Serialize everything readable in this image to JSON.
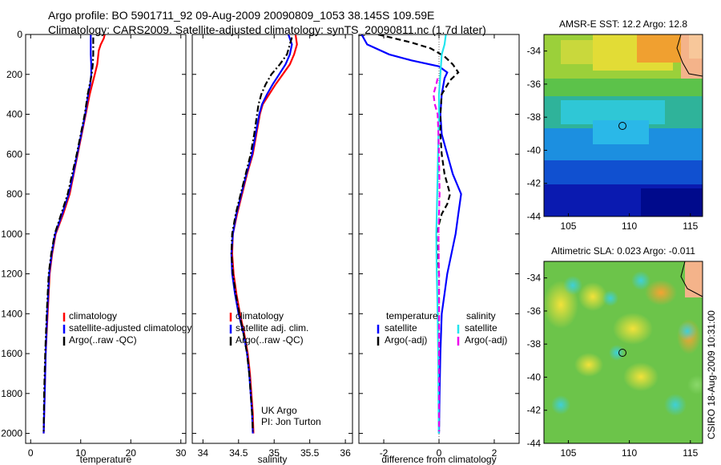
{
  "title": {
    "line1": "Argo profile: BO 5901711_92 09-Aug-2009 20090809_1053 38.145S 109.59E",
    "line2": "Climatology: CARS2009. Satellite-adjusted climatology: synTS_20090811.nc (1.7d later)"
  },
  "footer_stamp": "CSIRO 18-Aug-2009 10:31:00",
  "colors": {
    "red": "#ff0000",
    "blue": "#0000ff",
    "black": "#000000",
    "cyan": "#22e5ee",
    "magenta": "#ee00ee"
  },
  "chart_data": [
    {
      "type": "line",
      "xlabel": "temperature",
      "ylabel": "",
      "xlim": [
        -1,
        31
      ],
      "ylim": [
        2050,
        0
      ],
      "xticks": [
        0,
        10,
        20,
        30
      ],
      "yticks": [
        0,
        200,
        400,
        600,
        800,
        1000,
        1200,
        1400,
        1600,
        1800,
        2000
      ],
      "legend": [
        "climatology",
        "satellite-adjusted climatology",
        "Argo(..raw -QC)"
      ],
      "legend_placement": "lower-right",
      "series": [
        {
          "name": "climatology",
          "color": "red",
          "dash": "solid",
          "points": [
            [
              14.8,
              0
            ],
            [
              14.6,
              20
            ],
            [
              14.0,
              50
            ],
            [
              13.6,
              80
            ],
            [
              13.3,
              150
            ],
            [
              12.8,
              200
            ],
            [
              12.3,
              250
            ],
            [
              11.8,
              300
            ],
            [
              11.0,
              400
            ],
            [
              10.2,
              500
            ],
            [
              9.4,
              600
            ],
            [
              8.6,
              700
            ],
            [
              7.8,
              800
            ],
            [
              6.5,
              900
            ],
            [
              5.0,
              1000
            ],
            [
              4.3,
              1100
            ],
            [
              3.8,
              1200
            ],
            [
              3.4,
              1400
            ],
            [
              3.0,
              1600
            ],
            [
              2.8,
              1800
            ],
            [
              2.6,
              2000
            ]
          ]
        },
        {
          "name": "satellite-adjusted climatology",
          "color": "blue",
          "dash": "solid",
          "points": [
            [
              12.0,
              0
            ],
            [
              12.0,
              50
            ],
            [
              12.0,
              100
            ],
            [
              12.1,
              150
            ],
            [
              12.1,
              200
            ],
            [
              11.9,
              250
            ],
            [
              11.5,
              300
            ],
            [
              10.9,
              400
            ],
            [
              10.1,
              500
            ],
            [
              9.3,
              600
            ],
            [
              8.5,
              700
            ],
            [
              7.6,
              800
            ],
            [
              6.3,
              900
            ],
            [
              4.9,
              1000
            ],
            [
              4.2,
              1100
            ],
            [
              3.7,
              1200
            ],
            [
              3.3,
              1400
            ],
            [
              3.0,
              1600
            ],
            [
              2.8,
              1800
            ],
            [
              2.6,
              2000
            ]
          ]
        },
        {
          "name": "Argo(..raw -QC)",
          "color": "black",
          "dash": "dashdot",
          "points": [
            [
              12.5,
              15
            ],
            [
              12.5,
              50
            ],
            [
              12.5,
              100
            ],
            [
              12.4,
              150
            ],
            [
              12.2,
              200
            ],
            [
              11.8,
              250
            ],
            [
              11.4,
              300
            ],
            [
              10.8,
              400
            ],
            [
              10.0,
              500
            ],
            [
              9.2,
              600
            ],
            [
              8.3,
              700
            ],
            [
              7.4,
              800
            ],
            [
              6.1,
              900
            ],
            [
              4.8,
              1000
            ],
            [
              4.1,
              1100
            ],
            [
              3.6,
              1200
            ],
            [
              3.2,
              1400
            ],
            [
              2.9,
              1600
            ],
            [
              2.7,
              1800
            ],
            [
              2.6,
              1990
            ]
          ]
        }
      ]
    },
    {
      "type": "line",
      "xlabel": "salinity",
      "xlim": [
        33.85,
        36.1
      ],
      "ylim": [
        2050,
        0
      ],
      "xticks": [
        34,
        34.5,
        35,
        35.5,
        36
      ],
      "xtick_labels": [
        "34",
        "34.5",
        "35",
        "35.5",
        "36"
      ],
      "legend": [
        "climatology",
        "satellite adj. clim.",
        "Argo(..raw -QC)"
      ],
      "legend_placement": "lower-right",
      "annotations": [
        "UK Argo",
        "PI: Jon Turton"
      ],
      "series": [
        {
          "name": "climatology",
          "color": "red",
          "dash": "solid",
          "points": [
            [
              35.3,
              0
            ],
            [
              35.32,
              50
            ],
            [
              35.28,
              100
            ],
            [
              35.22,
              150
            ],
            [
              35.12,
              200
            ],
            [
              35.02,
              250
            ],
            [
              34.93,
              300
            ],
            [
              34.84,
              350
            ],
            [
              34.8,
              400
            ],
            [
              34.75,
              500
            ],
            [
              34.7,
              600
            ],
            [
              34.62,
              700
            ],
            [
              34.55,
              800
            ],
            [
              34.48,
              900
            ],
            [
              34.42,
              1000
            ],
            [
              34.41,
              1100
            ],
            [
              34.43,
              1200
            ],
            [
              34.47,
              1300
            ],
            [
              34.52,
              1400
            ],
            [
              34.58,
              1500
            ],
            [
              34.63,
              1600
            ],
            [
              34.66,
              1700
            ],
            [
              34.68,
              1800
            ],
            [
              34.7,
              1900
            ],
            [
              34.71,
              2000
            ]
          ]
        },
        {
          "name": "satellite adj. clim.",
          "color": "blue",
          "dash": "solid",
          "points": [
            [
              35.2,
              0
            ],
            [
              35.25,
              50
            ],
            [
              35.22,
              100
            ],
            [
              35.16,
              150
            ],
            [
              35.07,
              200
            ],
            [
              34.98,
              250
            ],
            [
              34.9,
              300
            ],
            [
              34.83,
              350
            ],
            [
              34.79,
              400
            ],
            [
              34.74,
              500
            ],
            [
              34.69,
              600
            ],
            [
              34.61,
              700
            ],
            [
              34.54,
              800
            ],
            [
              34.47,
              900
            ],
            [
              34.42,
              1000
            ],
            [
              34.4,
              1100
            ],
            [
              34.41,
              1200
            ],
            [
              34.45,
              1300
            ],
            [
              34.5,
              1400
            ],
            [
              34.57,
              1500
            ],
            [
              34.62,
              1600
            ],
            [
              34.65,
              1700
            ],
            [
              34.67,
              1800
            ],
            [
              34.69,
              1900
            ],
            [
              34.7,
              2000
            ]
          ]
        },
        {
          "name": "Argo(..raw -QC)",
          "color": "black",
          "dash": "dashdot",
          "points": [
            [
              35.25,
              15
            ],
            [
              35.22,
              50
            ],
            [
              35.18,
              100
            ],
            [
              35.08,
              150
            ],
            [
              34.96,
              200
            ],
            [
              34.88,
              250
            ],
            [
              34.82,
              300
            ],
            [
              34.78,
              350
            ],
            [
              34.76,
              400
            ],
            [
              34.72,
              500
            ],
            [
              34.67,
              600
            ],
            [
              34.6,
              700
            ],
            [
              34.53,
              800
            ],
            [
              34.46,
              900
            ],
            [
              34.41,
              1000
            ],
            [
              34.4,
              1100
            ],
            [
              34.42,
              1200
            ],
            [
              34.46,
              1300
            ],
            [
              34.51,
              1400
            ],
            [
              34.57,
              1500
            ],
            [
              34.62,
              1600
            ],
            [
              34.65,
              1700
            ],
            [
              34.67,
              1800
            ],
            [
              34.69,
              1900
            ],
            [
              34.7,
              1990
            ]
          ]
        }
      ]
    },
    {
      "type": "line",
      "xlabel": "difference from climatology",
      "xlim": [
        -2.9,
        2.9
      ],
      "ylim": [
        2050,
        0
      ],
      "xticks": [
        -2,
        0,
        2
      ],
      "legend": [
        "temperature",
        "satellite",
        "Argo(-adj)",
        "salinity",
        "satellite",
        "Argo(-adj)"
      ],
      "legend_placement": "lower-center",
      "series": [
        {
          "name": "satellite",
          "group": "temperature",
          "color": "blue",
          "dash": "solid",
          "points": [
            [
              -2.8,
              0
            ],
            [
              -2.6,
              50
            ],
            [
              -1.8,
              100
            ],
            [
              -1.0,
              130
            ],
            [
              0.0,
              160
            ],
            [
              0.3,
              190
            ],
            [
              0.2,
              220
            ],
            [
              0.1,
              300
            ],
            [
              0.05,
              400
            ],
            [
              0.1,
              500
            ],
            [
              0.3,
              600
            ],
            [
              0.5,
              700
            ],
            [
              0.8,
              800
            ],
            [
              0.7,
              900
            ],
            [
              0.6,
              1000
            ],
            [
              0.45,
              1100
            ],
            [
              0.3,
              1200
            ],
            [
              0.2,
              1300
            ],
            [
              0.1,
              1400
            ],
            [
              0.05,
              1600
            ],
            [
              0.02,
              1800
            ],
            [
              0.0,
              2000
            ]
          ]
        },
        {
          "name": "Argo(-adj)",
          "group": "temperature",
          "color": "black",
          "dash": "dashed",
          "points": [
            [
              -2.2,
              0
            ],
            [
              -1.6,
              20
            ],
            [
              -1.0,
              40
            ],
            [
              -0.3,
              70
            ],
            [
              0.2,
              110
            ],
            [
              0.5,
              150
            ],
            [
              0.7,
              190
            ],
            [
              0.4,
              230
            ],
            [
              0.1,
              300
            ],
            [
              0.05,
              400
            ],
            [
              0.05,
              500
            ],
            [
              0.1,
              600
            ],
            [
              0.2,
              700
            ],
            [
              0.4,
              800
            ],
            [
              0.3,
              850
            ],
            [
              0.1,
              900
            ],
            [
              -0.1,
              1000
            ],
            [
              -0.05,
              1100
            ],
            [
              0.0,
              1200
            ],
            [
              0.0,
              1400
            ],
            [
              0.0,
              1600
            ],
            [
              0.0,
              1800
            ],
            [
              0.0,
              1990
            ]
          ]
        },
        {
          "name": "satellite",
          "group": "salinity",
          "color": "cyan",
          "dash": "solid",
          "points": [
            [
              0.25,
              0
            ],
            [
              0.2,
              50
            ],
            [
              0.1,
              100
            ],
            [
              0.05,
              200
            ],
            [
              0.0,
              300
            ],
            [
              0.0,
              400
            ],
            [
              -0.02,
              500
            ],
            [
              -0.05,
              700
            ],
            [
              -0.08,
              900
            ],
            [
              -0.1,
              1000
            ],
            [
              -0.08,
              1200
            ],
            [
              -0.05,
              1400
            ],
            [
              -0.03,
              1600
            ],
            [
              -0.02,
              1800
            ],
            [
              -0.01,
              2000
            ]
          ]
        },
        {
          "name": "Argo(-adj)",
          "group": "salinity",
          "color": "magenta",
          "dash": "dashed",
          "points": [
            [
              -0.05,
              220
            ],
            [
              -0.1,
              250
            ],
            [
              -0.2,
              300
            ],
            [
              -0.15,
              350
            ],
            [
              -0.05,
              400
            ],
            [
              -0.02,
              500
            ],
            [
              0.0,
              600
            ],
            [
              0.02,
              800
            ],
            [
              -0.02,
              1000
            ],
            [
              0.0,
              1200
            ],
            [
              0.0,
              1400
            ],
            [
              0.0,
              1600
            ],
            [
              0.0,
              1800
            ],
            [
              0.0,
              1990
            ]
          ]
        }
      ]
    },
    {
      "type": "heatmap",
      "title": "AMSR-E SST: 12.2  Argo: 12.8",
      "xlim": [
        103,
        116
      ],
      "ylim": [
        -44,
        -33
      ],
      "xticks": [
        105,
        110,
        115
      ],
      "yticks": [
        -44,
        -42,
        -40,
        -38,
        -36,
        -34
      ],
      "marker": {
        "lon": 109.59,
        "lat": -38.145
      }
    },
    {
      "type": "heatmap",
      "title": "Altimetric SLA: 0.023  Argo: -0.011",
      "xlim": [
        103,
        116
      ],
      "ylim": [
        -44,
        -33
      ],
      "xticks": [
        105,
        110,
        115
      ],
      "yticks": [
        -44,
        -42,
        -40,
        -38,
        -36,
        -34
      ],
      "marker": {
        "lon": 109.59,
        "lat": -38.145
      }
    }
  ]
}
